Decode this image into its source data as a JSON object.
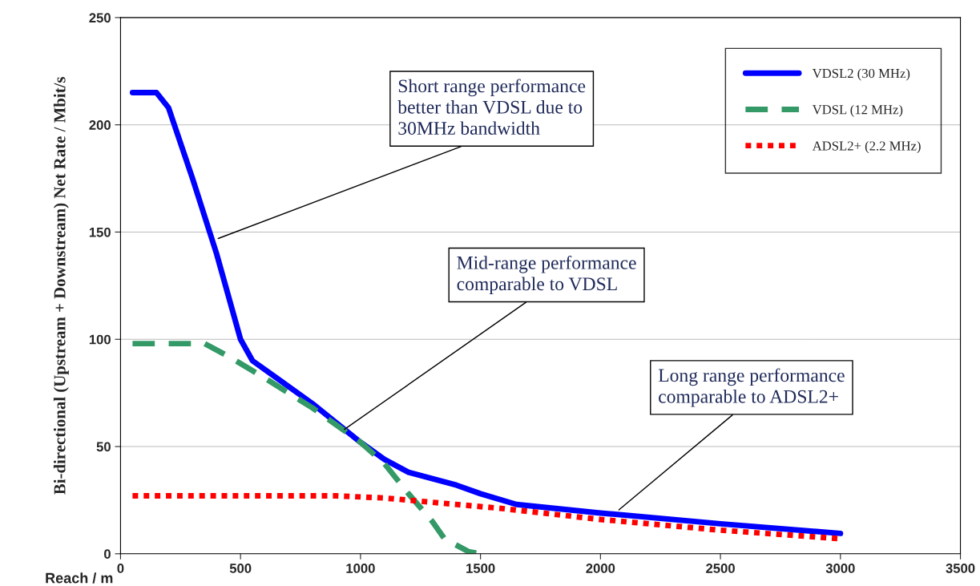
{
  "chart_data": {
    "type": "line",
    "xlabel": "Reach / m",
    "ylabel": "Bi-directional (Upstream + Downstream) Net Rate / Mbit/s",
    "xlim": [
      0,
      3500
    ],
    "xticks": [
      0,
      500,
      1000,
      1500,
      2000,
      2500,
      3000,
      3500
    ],
    "ylim": [
      0,
      250
    ],
    "yticks": [
      0,
      50,
      100,
      150,
      200,
      250
    ],
    "grid": "y",
    "legend": "top right",
    "marker": "none",
    "series": [
      {
        "name": "VDSL2 (30 MHz)",
        "color": "#0000ff",
        "line_style": "solid",
        "x": [
          50,
          150,
          200,
          300,
          400,
          500,
          550,
          650,
          800,
          1000,
          1100,
          1200,
          1400,
          1500,
          1650,
          2000,
          2500,
          3000
        ],
        "values": [
          215,
          215,
          208,
          175,
          140,
          100,
          90,
          82,
          70,
          52,
          44,
          38,
          32,
          28,
          23,
          19,
          14,
          9.5
        ]
      },
      {
        "name": "VDSL (12 MHz)",
        "color": "#339966",
        "line_style": "dashed",
        "x": [
          50,
          350,
          450,
          600,
          800,
          1000,
          1100,
          1200,
          1300,
          1350,
          1450,
          1500
        ],
        "values": [
          98,
          98,
          92,
          82,
          68,
          52,
          42,
          28,
          15,
          7,
          1,
          0
        ]
      },
      {
        "name": "ADSL2+ (2.2 MHz)",
        "color": "#ff0000",
        "line_style": "dotted",
        "x": [
          50,
          900,
          1100,
          1300,
          1600,
          2000,
          2500,
          3000
        ],
        "values": [
          27,
          27,
          26,
          24,
          21,
          16,
          11,
          7
        ]
      }
    ],
    "annotations": [
      {
        "text": "Short range performance\nbetter than VDSL due to\n30MHz bandwidth",
        "x": 407,
        "y": 147
      },
      {
        "text": "Mid-range performance\ncomparable to VDSL",
        "x": 933,
        "y": 58
      },
      {
        "text": "Long range performance\ncomparable to ADSL2+",
        "x": 2077,
        "y": 20.5
      }
    ]
  }
}
